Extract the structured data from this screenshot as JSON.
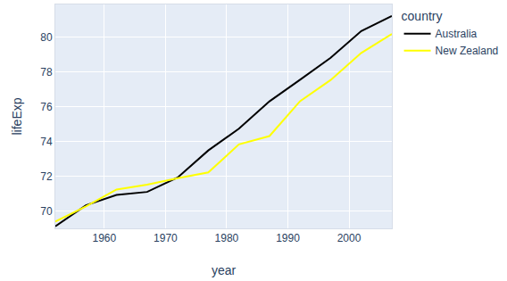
{
  "chart_data": {
    "type": "line",
    "x_label": "year",
    "y_label": "lifeExp",
    "legend_title": "country",
    "x": [
      1952,
      1957,
      1962,
      1967,
      1972,
      1977,
      1982,
      1987,
      1992,
      1997,
      2002,
      2007
    ],
    "series": [
      {
        "name": "Australia",
        "color": "#000000",
        "values": [
          69.12,
          70.33,
          70.93,
          71.1,
          71.93,
          73.49,
          74.74,
          76.32,
          77.56,
          78.83,
          80.37,
          81.235
        ]
      },
      {
        "name": "New Zealand",
        "color": "#ffff00",
        "values": [
          69.39,
          70.26,
          71.24,
          71.52,
          71.89,
          72.22,
          73.84,
          74.32,
          76.33,
          77.55,
          79.11,
          80.204
        ]
      }
    ],
    "xlim": [
      1952,
      2007
    ],
    "xticks": [
      1960,
      1970,
      1980,
      1990,
      2000
    ],
    "ylim": [
      69.0,
      81.9
    ],
    "yticks": [
      70,
      72,
      74,
      76,
      78,
      80
    ],
    "grid": true,
    "legend": "right"
  }
}
